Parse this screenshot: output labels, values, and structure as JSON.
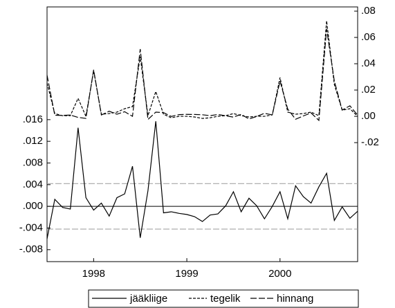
{
  "chart_data": {
    "type": "line",
    "x": [
      1997.5,
      1997.583,
      1997.667,
      1997.75,
      1997.833,
      1997.917,
      1998,
      1998.083,
      1998.167,
      1998.25,
      1998.333,
      1998.417,
      1998.5,
      1998.583,
      1998.667,
      1998.75,
      1998.833,
      1998.917,
      1999,
      1999.083,
      1999.167,
      1999.25,
      1999.333,
      1999.417,
      1999.5,
      1999.583,
      1999.667,
      1999.75,
      1999.833,
      1999.917,
      2000,
      2000.083,
      2000.167,
      2000.25,
      2000.333,
      2000.417,
      2000.5,
      2000.583,
      2000.667,
      2000.75,
      2000.833
    ],
    "xlim": [
      1997.5,
      2000.833
    ],
    "xticks": [
      1998,
      1999,
      2000
    ],
    "ylim": [
      -0.0102,
      0.0368
    ],
    "yticks": [
      {
        "value": 0.016,
        "label": ".016"
      },
      {
        "value": 0.012,
        "label": ".012"
      },
      {
        "value": 0.008,
        "label": ".008"
      },
      {
        "value": 0.004,
        "label": ".004"
      },
      {
        "value": 0,
        "label": ".000"
      },
      {
        "value": -0.004,
        "label": "-.004"
      },
      {
        "value": -0.008,
        "label": "-.008"
      }
    ],
    "y2lim": [
      -0.1105,
      0.0832
    ],
    "y2ticks": [
      {
        "value": 0.08,
        "label": ".08"
      },
      {
        "value": 0.06,
        "label": ".06"
      },
      {
        "value": 0.04,
        "label": ".04"
      },
      {
        "value": 0.02,
        "label": ".02"
      },
      {
        "value": 0,
        "label": ".00"
      },
      {
        "value": -0.02,
        "label": "-.02"
      }
    ],
    "reference_lines": [
      {
        "value": 0.0042,
        "style": "dashed",
        "color": "#9a9a9a"
      },
      {
        "value": 0,
        "style": "solid",
        "color": "#000000"
      },
      {
        "value": -0.0042,
        "style": "dashed",
        "color": "#9a9a9a"
      }
    ],
    "series": [
      {
        "name": "jääkliige",
        "color": "#000000",
        "line_style": "solid",
        "axis": "y",
        "values": [
          -0.006,
          0.0013,
          -0.0002,
          -0.0005,
          0.0145,
          0.0016,
          -0.0007,
          0.0006,
          -0.0018,
          0.0016,
          0.0023,
          0.0074,
          -0.0058,
          0.0029,
          0.0157,
          -0.0012,
          -0.001,
          -0.0013,
          -0.0015,
          -0.0019,
          -0.0028,
          -0.0016,
          -0.0014,
          0.0001,
          0.0027,
          -0.001,
          0.0015,
          0.0001,
          -0.0023,
          0,
          0.0027,
          -0.0023,
          0.0038,
          0.0018,
          0.0006,
          0.0036,
          0.0061,
          -0.0026,
          -0.0001,
          -0.0022,
          -0.0009
        ]
      },
      {
        "name": "tegelik",
        "color": "#000000",
        "line_style": "dotted",
        "axis": "y2",
        "values": [
          0.0253,
          0.0021,
          0.0005,
          0.0005,
          0.0137,
          0,
          0.0347,
          0.0016,
          0.0021,
          0.0032,
          0.0058,
          0.0074,
          0.0453,
          0.0005,
          0.0189,
          0.0016,
          -0.0011,
          0,
          0,
          -0.0005,
          -0.0016,
          -0.0011,
          0,
          0.0005,
          0.0021,
          0.0005,
          -0.0005,
          0,
          0,
          0.0011,
          0.0295,
          0.0032,
          0.0016,
          0.0021,
          0.0032,
          0.0005,
          0.0726,
          0.0242,
          0.0047,
          0.0058,
          0
        ]
      },
      {
        "name": "hinnang",
        "color": "#000000",
        "line_style": "dashed",
        "axis": "y2",
        "values": [
          0.0313,
          0.0008,
          0.0007,
          0.001,
          -0.0008,
          -0.0016,
          0.0354,
          0.001,
          0.0039,
          0.0016,
          0.0035,
          0,
          0.0511,
          -0.0024,
          0.0032,
          0.0028,
          -0.0001,
          0.0013,
          0.0015,
          0.0014,
          0.0012,
          0.0005,
          0.0014,
          0.0004,
          -0.0006,
          0.0015,
          -0.002,
          -0.0001,
          0.0023,
          0.0011,
          0.0268,
          0.0055,
          -0.0022,
          0.0003,
          0.0026,
          -0.0031,
          0.0665,
          0.0268,
          0.0048,
          0.008,
          0.0009
        ]
      }
    ],
    "legend": "bottom"
  }
}
